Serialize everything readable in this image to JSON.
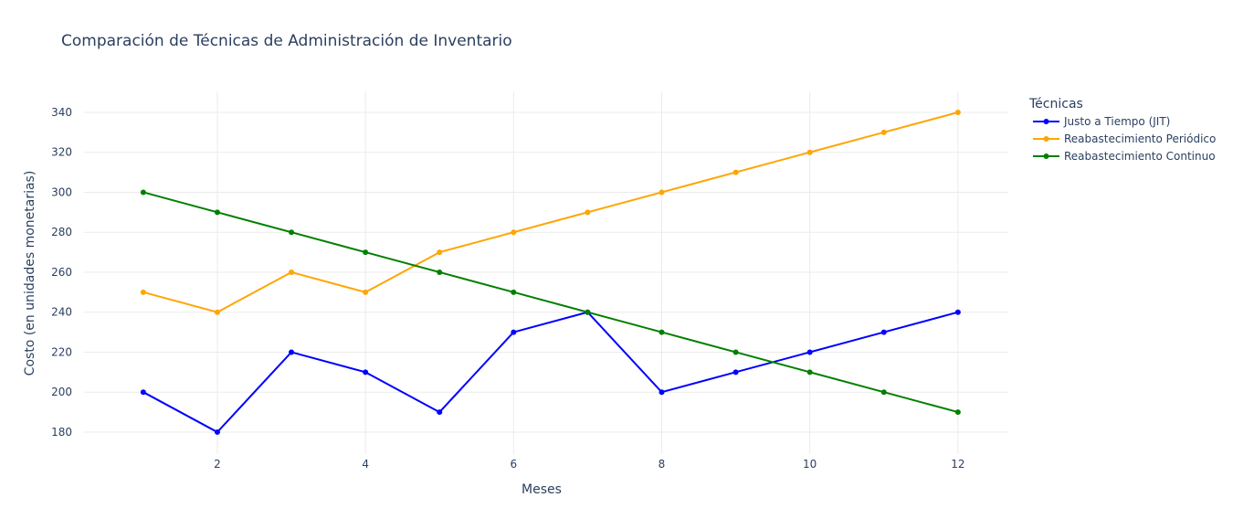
{
  "chart_data": {
    "type": "line",
    "title": "Comparación de Técnicas de Administración de Inventario",
    "xlabel": "Meses",
    "ylabel": "Costo (en unidades monetarias)",
    "x": [
      1,
      2,
      3,
      4,
      5,
      6,
      7,
      8,
      9,
      10,
      11,
      12
    ],
    "xlim": [
      0.2,
      12.68
    ],
    "ylim": [
      169,
      350.5
    ],
    "xticks": [
      2,
      4,
      6,
      8,
      10,
      12
    ],
    "yticks": [
      180,
      200,
      220,
      240,
      260,
      280,
      300,
      320,
      340
    ],
    "grid": true,
    "legend": {
      "title": "Técnicas",
      "position": "top-right, outside plot"
    },
    "series": [
      {
        "name": "Justo a Tiempo (JIT)",
        "color": "#0000ff",
        "values": [
          200,
          180,
          220,
          210,
          190,
          230,
          240,
          200,
          210,
          220,
          230,
          240
        ]
      },
      {
        "name": "Reabastecimiento Periódico",
        "color": "#ffa500",
        "values": [
          250,
          240,
          260,
          250,
          270,
          280,
          290,
          300,
          310,
          320,
          330,
          340
        ]
      },
      {
        "name": "Reabastecimiento Continuo",
        "color": "#008000",
        "values": [
          300,
          290,
          280,
          270,
          260,
          250,
          240,
          230,
          220,
          210,
          200,
          190
        ]
      }
    ]
  }
}
